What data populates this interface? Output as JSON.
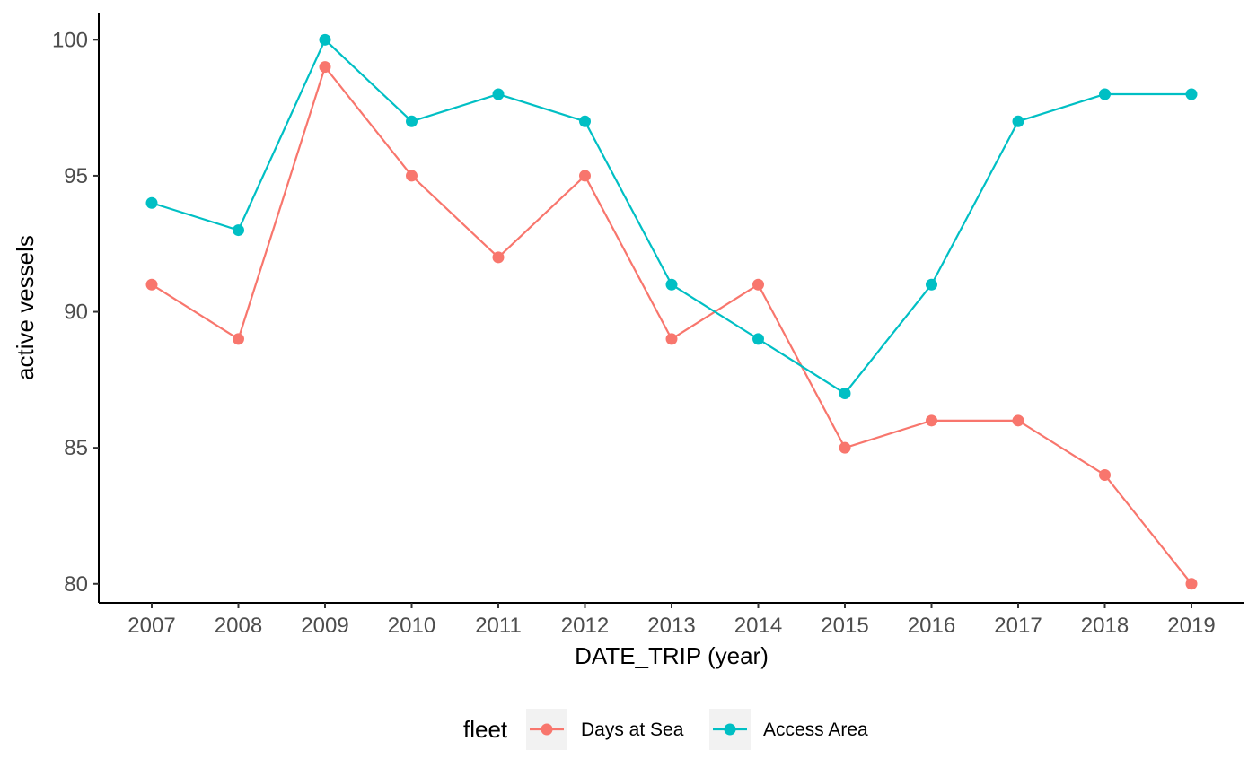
{
  "chart_data": {
    "type": "line",
    "title": "",
    "xlabel": "DATE_TRIP (year)",
    "ylabel": "active vessels",
    "x": [
      "2007",
      "2008",
      "2009",
      "2010",
      "2011",
      "2012",
      "2013",
      "2014",
      "2015",
      "2016",
      "2017",
      "2018",
      "2019"
    ],
    "yticks": [
      "80",
      "85",
      "90",
      "95",
      "100"
    ],
    "ylim": [
      79.3,
      101.0
    ],
    "grid": false,
    "legend": {
      "title": "fleet",
      "position": "bottom"
    },
    "series": [
      {
        "name": "Days at Sea",
        "color": "#F8766D",
        "values": [
          91,
          89,
          99,
          95,
          92,
          95,
          89,
          91,
          85,
          86,
          86,
          84,
          80
        ]
      },
      {
        "name": "Access Area",
        "color": "#00BFC4",
        "values": [
          94,
          93,
          100,
          97,
          98,
          97,
          91,
          89,
          87,
          91,
          97,
          98,
          98
        ]
      }
    ]
  }
}
